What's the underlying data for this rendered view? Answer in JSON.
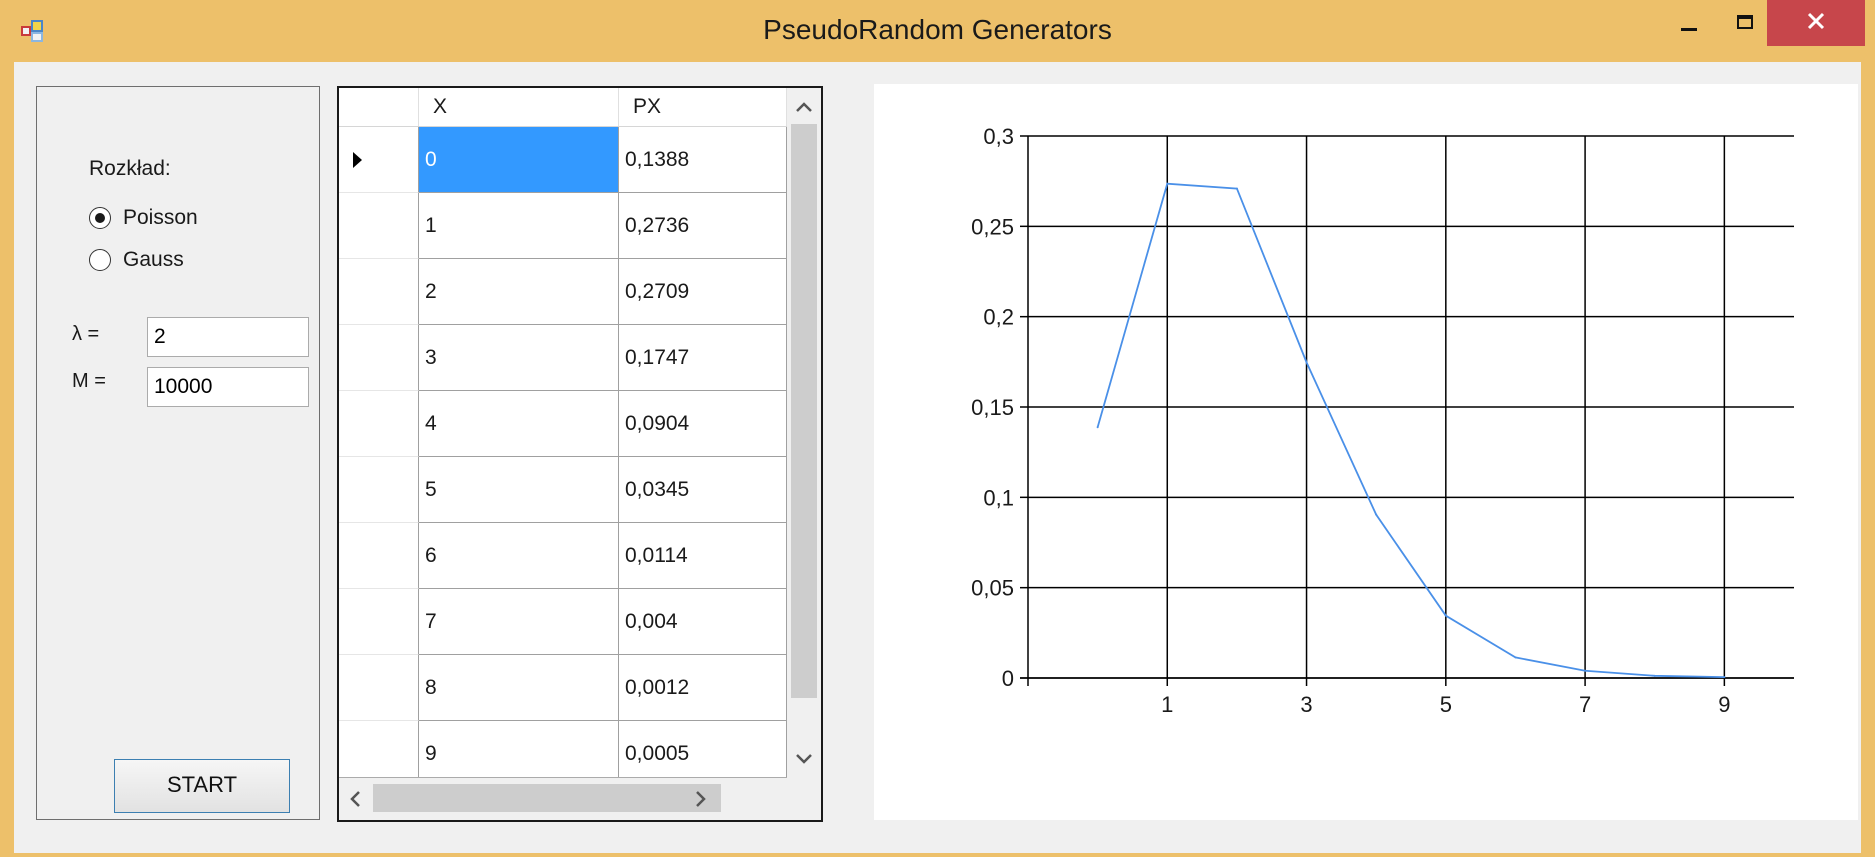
{
  "window": {
    "title": "PseudoRandom Generators",
    "controls": [
      "minimize",
      "maximize",
      "close"
    ]
  },
  "options": {
    "distribution_label": "Rozkład:",
    "radios": [
      {
        "label": "Poisson",
        "checked": true
      },
      {
        "label": "Gauss",
        "checked": false
      }
    ],
    "lambda_label": "λ =",
    "lambda_value": "2",
    "m_label": "M =",
    "m_value": "10000",
    "start_label": "START"
  },
  "grid": {
    "columns": [
      "X",
      "PX"
    ],
    "selected_row": 0,
    "rows": [
      [
        "0",
        "0,1388"
      ],
      [
        "1",
        "0,2736"
      ],
      [
        "2",
        "0,2709"
      ],
      [
        "3",
        "0,1747"
      ],
      [
        "4",
        "0,0904"
      ],
      [
        "5",
        "0,0345"
      ],
      [
        "6",
        "0,0114"
      ],
      [
        "7",
        "0,004"
      ],
      [
        "8",
        "0,0012"
      ],
      [
        "9",
        "0,0005"
      ]
    ]
  },
  "chart_data": {
    "type": "line",
    "title": "",
    "xlabel": "",
    "ylabel": "",
    "x": [
      0,
      1,
      2,
      3,
      4,
      5,
      6,
      7,
      8,
      9
    ],
    "series": [
      {
        "values": [
          0.1388,
          0.2736,
          0.2709,
          0.1747,
          0.0904,
          0.0345,
          0.0114,
          0.004,
          0.0012,
          0.0005
        ],
        "color": "#4A90E8"
      }
    ],
    "xlim": [
      -1,
      10
    ],
    "ylim": [
      0,
      0.3
    ],
    "x_ticks": [
      1,
      3,
      5,
      7,
      9
    ],
    "x_tick_labels": [
      "1",
      "3",
      "5",
      "7",
      "9"
    ],
    "y_ticks": [
      0,
      0.05,
      0.1,
      0.15,
      0.2,
      0.25,
      0.3
    ],
    "y_tick_labels": [
      "0",
      "0,05",
      "0,1",
      "0,15",
      "0,2",
      "0,25",
      "0,3"
    ],
    "grid": true,
    "legend": "none"
  },
  "colors": {
    "title_bar": "#EDC06A",
    "close_button": "#C7464B",
    "selection": "#3399FF",
    "series_line": "#4A90E8"
  }
}
